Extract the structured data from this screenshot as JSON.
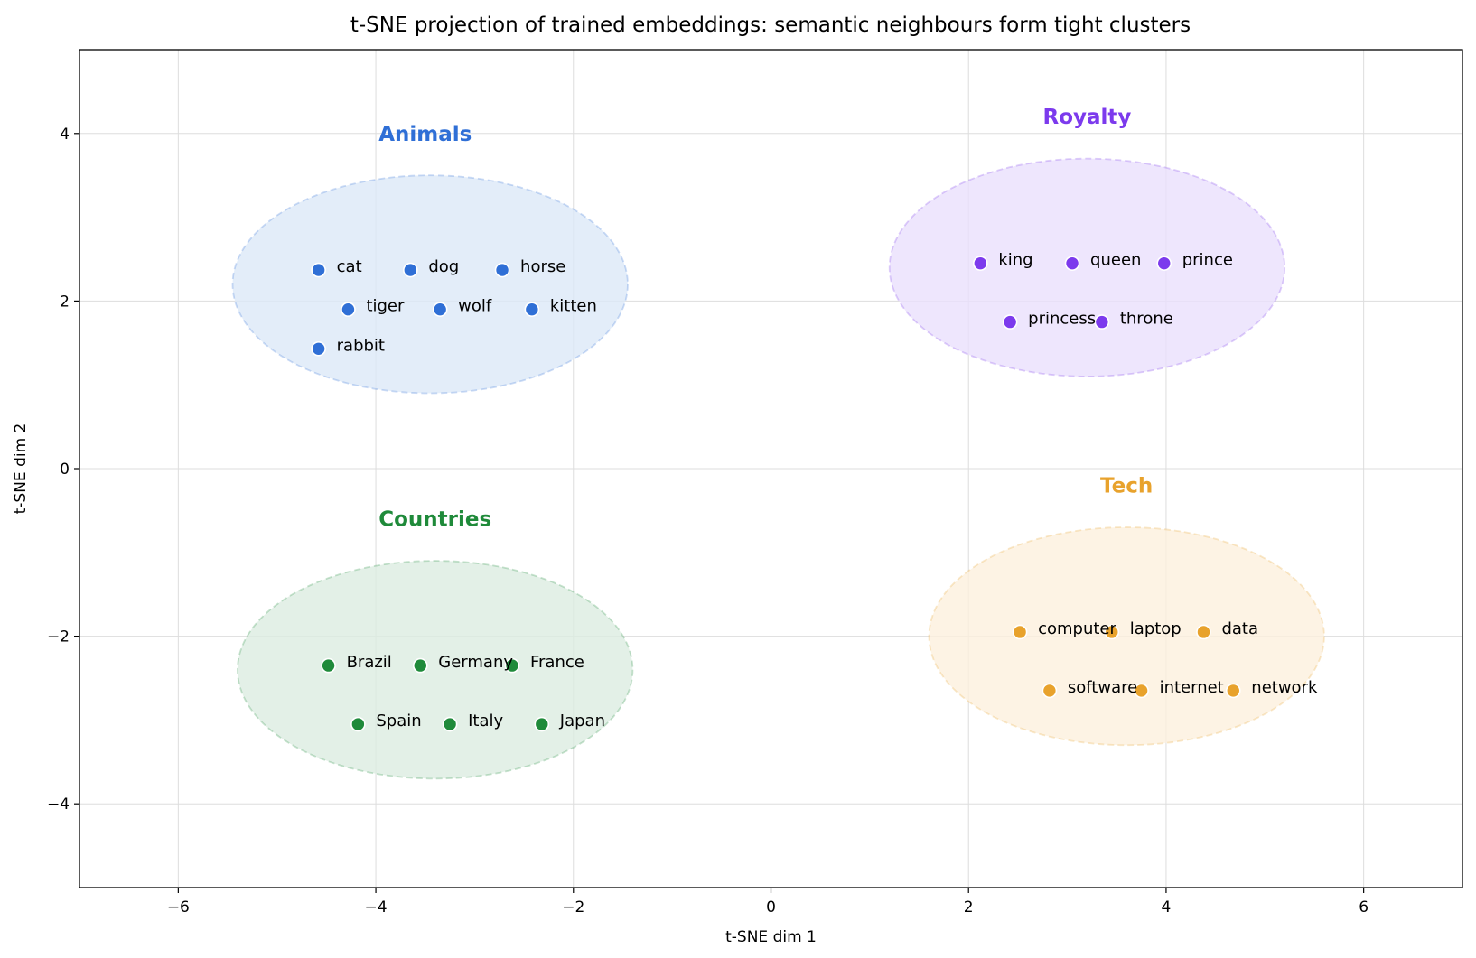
{
  "chart_data": {
    "type": "scatter",
    "title": "t-SNE projection of trained embeddings: semantic neighbours form tight clusters",
    "xlabel": "t-SNE dim 1",
    "ylabel": "t-SNE dim 2",
    "xlim": [
      -7,
      7
    ],
    "ylim": [
      -5,
      5
    ],
    "xticks": [
      -6,
      -4,
      -2,
      0,
      2,
      4,
      6
    ],
    "yticks": [
      -4,
      -2,
      0,
      2,
      4
    ],
    "xtick_labels": [
      "−6",
      "−4",
      "−2",
      "0",
      "2",
      "4",
      "6"
    ],
    "ytick_labels": [
      "−4",
      "−2",
      "0",
      "2",
      "4"
    ],
    "grid": true,
    "clusters": [
      {
        "name": "Animals",
        "color": "#2f6fd6",
        "fill": "#dce8f8",
        "label_pos": [
          -3.5,
          4.0
        ],
        "ellipse": {
          "cx": -3.45,
          "cy": 2.2,
          "rx": 2.0,
          "ry": 1.3
        },
        "points": [
          {
            "word": "cat",
            "x": -4.58,
            "y": 2.37
          },
          {
            "word": "dog",
            "x": -3.65,
            "y": 2.37
          },
          {
            "word": "horse",
            "x": -2.72,
            "y": 2.37
          },
          {
            "word": "tiger",
            "x": -4.28,
            "y": 1.9
          },
          {
            "word": "wolf",
            "x": -3.35,
            "y": 1.9
          },
          {
            "word": "kitten",
            "x": -2.42,
            "y": 1.9
          },
          {
            "word": "rabbit",
            "x": -4.58,
            "y": 1.43
          }
        ]
      },
      {
        "name": "Royalty",
        "color": "#7c3aed",
        "fill": "#eae0fc",
        "label_pos": [
          3.2,
          4.2
        ],
        "ellipse": {
          "cx": 3.2,
          "cy": 2.4,
          "rx": 2.0,
          "ry": 1.3
        },
        "points": [
          {
            "word": "king",
            "x": 2.12,
            "y": 2.45
          },
          {
            "word": "queen",
            "x": 3.05,
            "y": 2.45
          },
          {
            "word": "prince",
            "x": 3.98,
            "y": 2.45
          },
          {
            "word": "princess",
            "x": 2.42,
            "y": 1.75
          },
          {
            "word": "throne",
            "x": 3.35,
            "y": 1.75
          }
        ]
      },
      {
        "name": "Countries",
        "color": "#1f8a3a",
        "fill": "#dcece1",
        "label_pos": [
          -3.4,
          -0.6
        ],
        "ellipse": {
          "cx": -3.4,
          "cy": -2.4,
          "rx": 2.0,
          "ry": 1.3
        },
        "points": [
          {
            "word": "Brazil",
            "x": -4.48,
            "y": -2.35
          },
          {
            "word": "Germany",
            "x": -3.55,
            "y": -2.35
          },
          {
            "word": "France",
            "x": -2.62,
            "y": -2.35
          },
          {
            "word": "Spain",
            "x": -4.18,
            "y": -3.05
          },
          {
            "word": "Italy",
            "x": -3.25,
            "y": -3.05
          },
          {
            "word": "Japan",
            "x": -2.32,
            "y": -3.05
          }
        ]
      },
      {
        "name": "Tech",
        "color": "#e8a22c",
        "fill": "#fcf0dd",
        "label_pos": [
          3.6,
          -0.2
        ],
        "ellipse": {
          "cx": 3.6,
          "cy": -2.0,
          "rx": 2.0,
          "ry": 1.3
        },
        "points": [
          {
            "word": "computer",
            "x": 2.52,
            "y": -1.95
          },
          {
            "word": "laptop",
            "x": 3.45,
            "y": -1.95
          },
          {
            "word": "data",
            "x": 4.38,
            "y": -1.95
          },
          {
            "word": "software",
            "x": 2.82,
            "y": -2.65
          },
          {
            "word": "internet",
            "x": 3.75,
            "y": -2.65
          },
          {
            "word": "network",
            "x": 4.68,
            "y": -2.65
          }
        ]
      }
    ]
  }
}
